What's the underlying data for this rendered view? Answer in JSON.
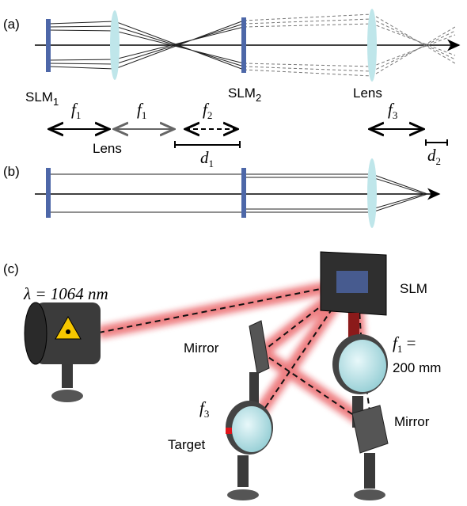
{
  "panel_a": {
    "label": "(a)",
    "slm1": {
      "main": "SLM",
      "sub": "1"
    },
    "f1_top": {
      "main": "f",
      "sub": "1"
    },
    "f1_second": {
      "main": "f",
      "sub": "1"
    },
    "lens_below": "Lens",
    "f2": {
      "main": "f",
      "sub": "2"
    },
    "d1": {
      "main": "d",
      "sub": "1"
    },
    "slm2": {
      "main": "SLM",
      "sub": "2"
    },
    "lens_right": "Lens",
    "f3": {
      "main": "f",
      "sub": "3"
    },
    "d2": {
      "main": "d",
      "sub": "2"
    }
  },
  "panel_b": {
    "label": "(b)"
  },
  "panel_c": {
    "label": "(c)",
    "wavelength": "λ = 1064 nm",
    "slm": "SLM",
    "mirror_left": "Mirror",
    "f1": {
      "main": "f",
      "sub": "1",
      "suffix": " ="
    },
    "f1_value": "200 mm",
    "f3": {
      "main": "f",
      "sub": "3"
    },
    "target": "Target",
    "mirror_right": "Mirror"
  }
}
